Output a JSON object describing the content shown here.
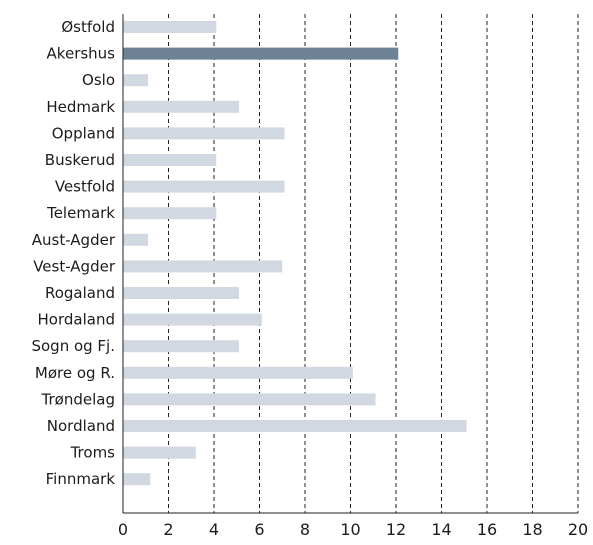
{
  "chart_data": {
    "type": "bar",
    "orientation": "horizontal",
    "categories": [
      "Østfold",
      "Akershus",
      "Oslo",
      "Hedmark",
      "Oppland",
      "Buskerud",
      "Vestfold",
      "Telemark",
      "Aust-Agder",
      "Vest-Agder",
      "Rogaland",
      "Hordaland",
      "Sogn og Fj.",
      "Møre og R.",
      "Trøndelag",
      "Nordland",
      "Troms",
      "Finnmark"
    ],
    "values": [
      4.1,
      12.1,
      1.1,
      5.1,
      7.1,
      4.1,
      7.1,
      4.1,
      1.1,
      7.0,
      5.1,
      6.1,
      5.1,
      10.1,
      11.1,
      15.1,
      3.2,
      1.2
    ],
    "highlight_category": "Akershus",
    "xlim": [
      0,
      20
    ],
    "x_ticks": [
      "0",
      "2",
      "4",
      "6",
      "8",
      "10",
      "12",
      "14",
      "16",
      "18",
      "20"
    ],
    "grid": "vertical dashed",
    "colors": {
      "bar": "#d1d8e2",
      "highlight": "#6e8296",
      "grid": "#222222",
      "axis": "#222222"
    }
  }
}
